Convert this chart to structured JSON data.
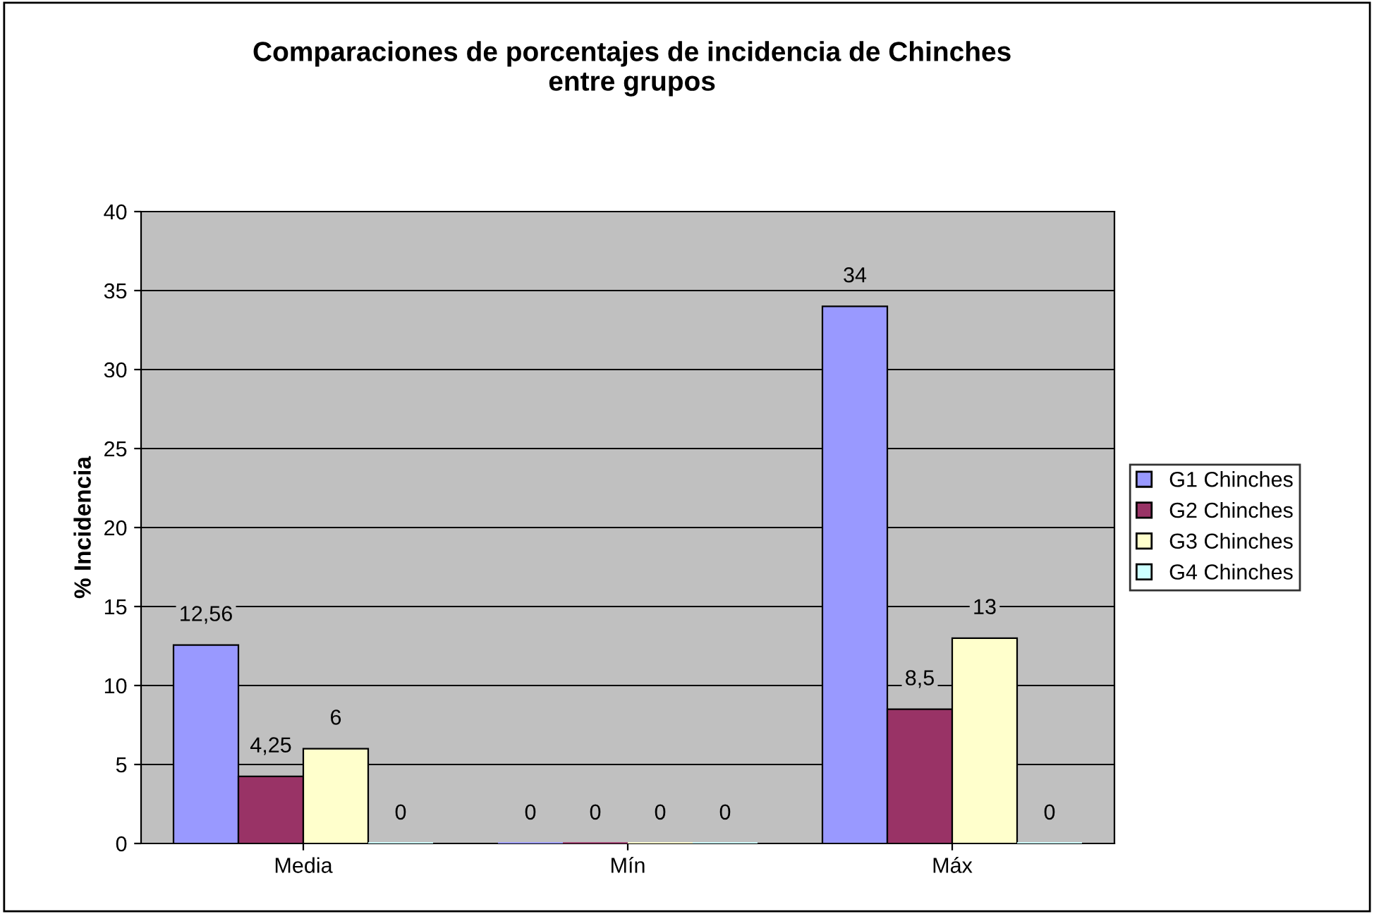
{
  "chart_data": {
    "type": "bar",
    "title": "Comparaciones de porcentajes de incidencia de Chinches\nentre grupos",
    "ylabel": "% Incidencia",
    "categories": [
      "Media",
      "Mín",
      "Máx"
    ],
    "series": [
      {
        "name": "G1 Chinches",
        "color": "#9999ff",
        "values": [
          12.56,
          0,
          34
        ],
        "value_labels": [
          "12,56",
          "0",
          "34"
        ]
      },
      {
        "name": "G2 Chinches",
        "color": "#993366",
        "values": [
          4.25,
          0,
          8.5
        ],
        "value_labels": [
          "4,25",
          "0",
          "8,5"
        ]
      },
      {
        "name": "G3 Chinches",
        "color": "#ffffcc",
        "values": [
          6,
          0,
          13
        ],
        "value_labels": [
          "6",
          "0",
          "13"
        ]
      },
      {
        "name": "G4 Chinches",
        "color": "#ccffff",
        "values": [
          0,
          0,
          0
        ],
        "value_labels": [
          "0",
          "0",
          "0"
        ]
      }
    ],
    "ylim": [
      0,
      40
    ],
    "yticks": [
      0,
      5,
      10,
      15,
      20,
      25,
      30,
      35,
      40
    ],
    "grid": "y",
    "legend": "right"
  }
}
